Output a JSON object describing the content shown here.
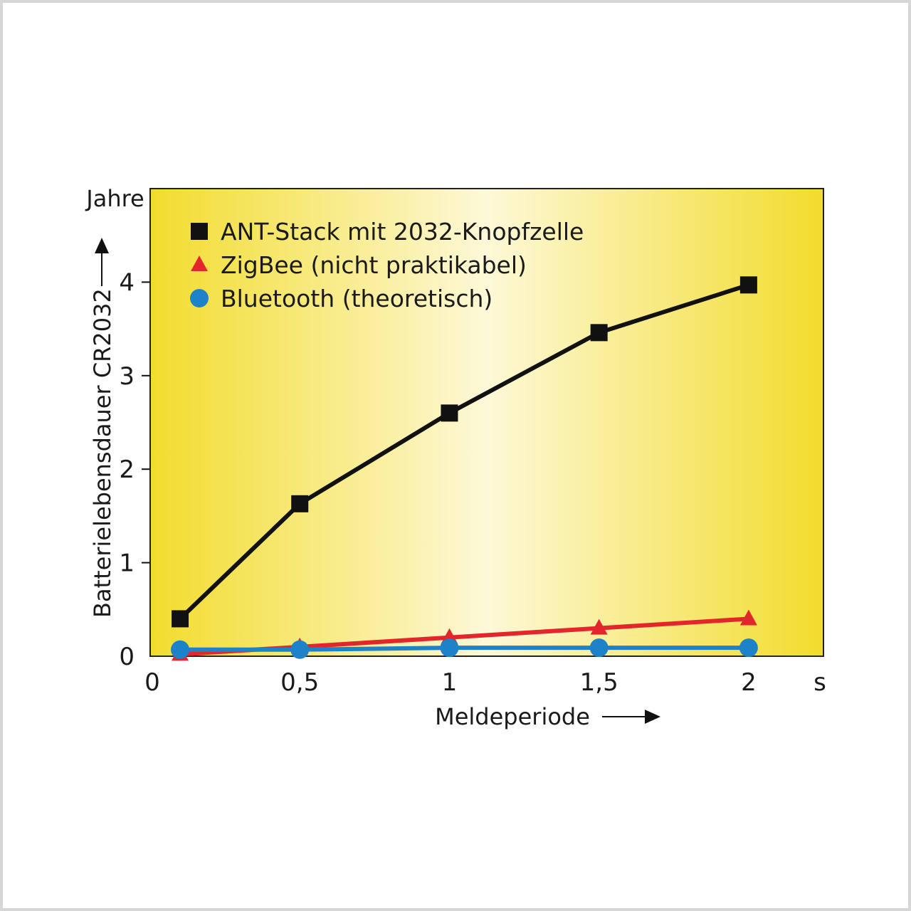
{
  "chart_data": {
    "type": "line",
    "x": [
      0.1,
      0.5,
      1,
      1.5,
      2
    ],
    "x_ticks": [
      {
        "value": 0,
        "label": "0"
      },
      {
        "value": 0.5,
        "label": "0,5"
      },
      {
        "value": 1,
        "label": "1"
      },
      {
        "value": 1.5,
        "label": "1,5"
      },
      {
        "value": 2,
        "label": "2"
      }
    ],
    "y_ticks": [
      {
        "value": 0,
        "label": "0"
      },
      {
        "value": 1,
        "label": "1"
      },
      {
        "value": 2,
        "label": "2"
      },
      {
        "value": 3,
        "label": "3"
      },
      {
        "value": 4,
        "label": "4"
      }
    ],
    "xlim": [
      0,
      2.25
    ],
    "ylim": [
      0,
      5.0
    ],
    "x_unit": "s",
    "y_unit": "Jahre",
    "xlabel": "Meldeperiode",
    "ylabel": "Batterielebensdauer CR2032",
    "grid": false,
    "legend_position": "top-left",
    "background": {
      "edge": "#f2dc2c",
      "center": "#fdf8d8"
    },
    "series": [
      {
        "name": "ANT-Stack mit 2032-Knopfzelle",
        "values": [
          0.4,
          1.63,
          2.6,
          3.46,
          3.97
        ],
        "color": "#111111",
        "marker": "square"
      },
      {
        "name": "ZigBee (nicht praktikabel)",
        "values": [
          0.02,
          0.1,
          0.2,
          0.3,
          0.4
        ],
        "color": "#e3262b",
        "marker": "triangle"
      },
      {
        "name": "Bluetooth (theoretisch)",
        "values": [
          0.07,
          0.07,
          0.09,
          0.09,
          0.09
        ],
        "color": "#1e82c8",
        "marker": "circle"
      }
    ]
  }
}
